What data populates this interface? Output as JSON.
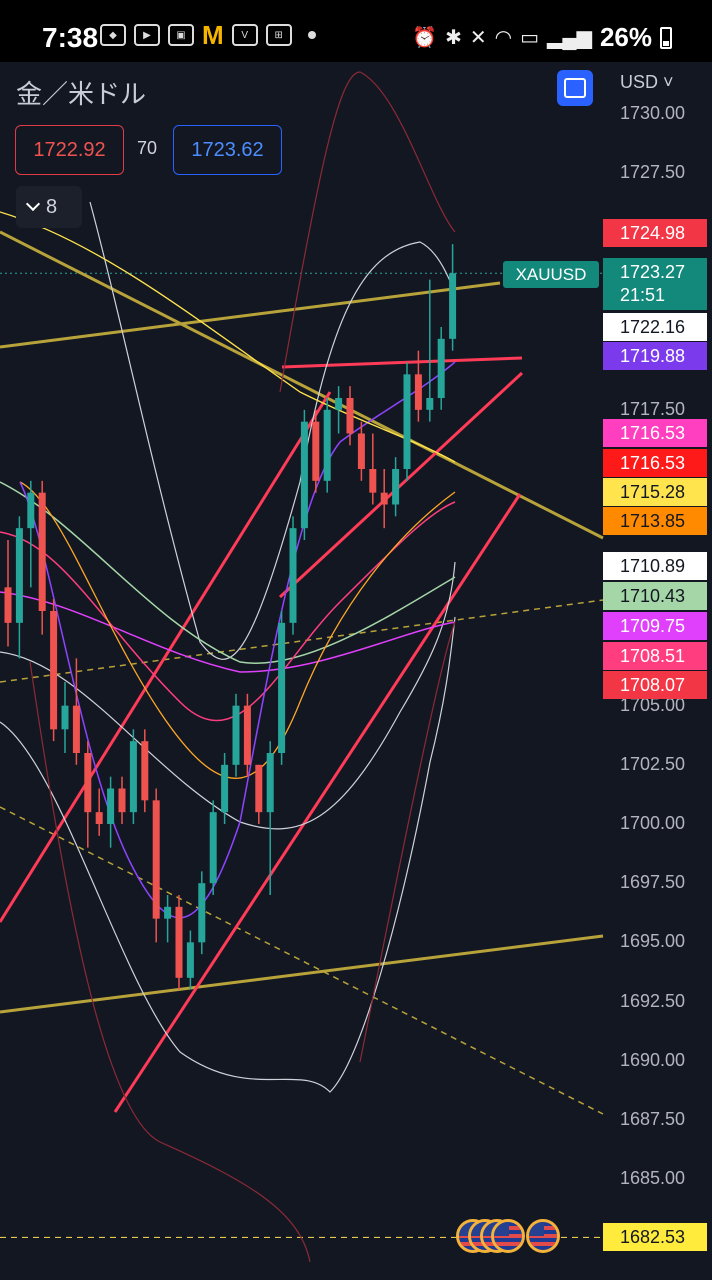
{
  "status_bar": {
    "time": "7:38",
    "left_icons": [
      "news-icon",
      "youtube-icon",
      "photo-icon",
      "mcdonalds-icon",
      "vpass-icon",
      "app-grid-icon",
      "dot-icon"
    ],
    "right_icons": [
      "alarm-icon",
      "bluetooth-icon",
      "mute-icon",
      "wifi-icon",
      "volte-icon",
      "signal-icon"
    ],
    "battery": "26%"
  },
  "header": {
    "symbol_title": "金／米ドル",
    "currency": "USD",
    "bid": "1722.92",
    "spread": "70",
    "ask": "1723.62",
    "indicators_count": "8"
  },
  "price_axis": {
    "labels": [
      "1730.00",
      "1727.50",
      "1717.50",
      "1705.00",
      "1702.50",
      "1700.00",
      "1697.50",
      "1695.00",
      "1692.50",
      "1690.00",
      "1687.50",
      "1685.00"
    ]
  },
  "current_price": {
    "symbol": "XAUUSD",
    "price": "1723.27",
    "countdown": "21:51"
  },
  "price_tags": [
    {
      "value": "1724.98",
      "bg": "#f23645",
      "fg": "#ffffff"
    },
    {
      "value": "1722.16",
      "bg": "#ffffff",
      "fg": "#131722"
    },
    {
      "value": "1719.88",
      "bg": "#7c3aed",
      "fg": "#ffffff"
    },
    {
      "value": "1716.53",
      "bg": "#ff3fbf",
      "fg": "#ffffff"
    },
    {
      "value": "1716.53",
      "bg": "#ff1a1a",
      "fg": "#ffffff"
    },
    {
      "value": "1715.28",
      "bg": "#ffe44d",
      "fg": "#131722"
    },
    {
      "value": "1713.85",
      "bg": "#ff8a00",
      "fg": "#131722"
    },
    {
      "value": "1710.89",
      "bg": "#ffffff",
      "fg": "#131722"
    },
    {
      "value": "1710.43",
      "bg": "#a5d6a7",
      "fg": "#131722"
    },
    {
      "value": "1709.75",
      "bg": "#e040fb",
      "fg": "#ffffff"
    },
    {
      "value": "1708.51",
      "bg": "#ff3d7f",
      "fg": "#ffffff"
    },
    {
      "value": "1708.07",
      "bg": "#f23645",
      "fg": "#ffffff"
    },
    {
      "value": "1682.53",
      "bg": "#ffeb3b",
      "fg": "#131722"
    }
  ],
  "colors": {
    "background": "#131722",
    "bull": "#26a69a",
    "bear": "#ef5350",
    "accent": "#2962ff"
  },
  "chart_data": {
    "type": "candlestick",
    "symbol": "XAUUSD",
    "currency": "USD",
    "ylim": [
      1680,
      1732
    ],
    "candles": [
      {
        "o": 1710.0,
        "h": 1712.0,
        "l": 1707.5,
        "c": 1708.5
      },
      {
        "o": 1708.5,
        "h": 1713.0,
        "l": 1707.0,
        "c": 1712.5
      },
      {
        "o": 1712.5,
        "h": 1714.5,
        "l": 1710.0,
        "c": 1714.0
      },
      {
        "o": 1714.0,
        "h": 1714.5,
        "l": 1708.0,
        "c": 1709.0
      },
      {
        "o": 1709.0,
        "h": 1709.5,
        "l": 1703.5,
        "c": 1704.0
      },
      {
        "o": 1704.0,
        "h": 1706.0,
        "l": 1703.0,
        "c": 1705.0
      },
      {
        "o": 1705.0,
        "h": 1707.0,
        "l": 1702.5,
        "c": 1703.0
      },
      {
        "o": 1703.0,
        "h": 1703.5,
        "l": 1699.0,
        "c": 1700.5
      },
      {
        "o": 1700.5,
        "h": 1701.5,
        "l": 1699.5,
        "c": 1700.0
      },
      {
        "o": 1700.0,
        "h": 1702.0,
        "l": 1699.0,
        "c": 1701.5
      },
      {
        "o": 1701.5,
        "h": 1702.0,
        "l": 1700.0,
        "c": 1700.5
      },
      {
        "o": 1700.5,
        "h": 1704.0,
        "l": 1700.0,
        "c": 1703.5
      },
      {
        "o": 1703.5,
        "h": 1704.0,
        "l": 1700.5,
        "c": 1701.0
      },
      {
        "o": 1701.0,
        "h": 1701.5,
        "l": 1695.0,
        "c": 1696.0
      },
      {
        "o": 1696.0,
        "h": 1697.0,
        "l": 1695.0,
        "c": 1696.5
      },
      {
        "o": 1696.5,
        "h": 1697.0,
        "l": 1693.0,
        "c": 1693.5
      },
      {
        "o": 1693.5,
        "h": 1695.5,
        "l": 1693.0,
        "c": 1695.0
      },
      {
        "o": 1695.0,
        "h": 1698.0,
        "l": 1694.5,
        "c": 1697.5
      },
      {
        "o": 1697.5,
        "h": 1701.0,
        "l": 1697.0,
        "c": 1700.5
      },
      {
        "o": 1700.5,
        "h": 1703.0,
        "l": 1700.0,
        "c": 1702.5
      },
      {
        "o": 1702.5,
        "h": 1705.5,
        "l": 1702.0,
        "c": 1705.0
      },
      {
        "o": 1705.0,
        "h": 1705.5,
        "l": 1702.0,
        "c": 1702.5
      },
      {
        "o": 1702.5,
        "h": 1702.5,
        "l": 1700.0,
        "c": 1700.5
      },
      {
        "o": 1700.5,
        "h": 1703.5,
        "l": 1697.0,
        "c": 1703.0
      },
      {
        "o": 1703.0,
        "h": 1709.0,
        "l": 1702.5,
        "c": 1708.5
      },
      {
        "o": 1708.5,
        "h": 1713.0,
        "l": 1708.0,
        "c": 1712.5
      },
      {
        "o": 1712.5,
        "h": 1717.5,
        "l": 1712.0,
        "c": 1717.0
      },
      {
        "o": 1717.0,
        "h": 1717.5,
        "l": 1714.0,
        "c": 1714.5
      },
      {
        "o": 1714.5,
        "h": 1718.0,
        "l": 1714.0,
        "c": 1717.5
      },
      {
        "o": 1717.5,
        "h": 1718.5,
        "l": 1716.5,
        "c": 1718.0
      },
      {
        "o": 1718.0,
        "h": 1718.5,
        "l": 1716.0,
        "c": 1716.5
      },
      {
        "o": 1716.5,
        "h": 1717.0,
        "l": 1714.5,
        "c": 1715.0
      },
      {
        "o": 1715.0,
        "h": 1716.5,
        "l": 1713.5,
        "c": 1714.0
      },
      {
        "o": 1714.0,
        "h": 1715.0,
        "l": 1712.5,
        "c": 1713.5
      },
      {
        "o": 1713.5,
        "h": 1715.5,
        "l": 1713.0,
        "c": 1715.0
      },
      {
        "o": 1715.0,
        "h": 1719.5,
        "l": 1714.5,
        "c": 1719.0
      },
      {
        "o": 1719.0,
        "h": 1720.0,
        "l": 1717.0,
        "c": 1717.5
      },
      {
        "o": 1717.5,
        "h": 1723.0,
        "l": 1717.0,
        "c": 1718.0
      },
      {
        "o": 1718.0,
        "h": 1721.0,
        "l": 1717.5,
        "c": 1720.5
      },
      {
        "o": 1720.5,
        "h": 1724.5,
        "l": 1720.0,
        "c": 1723.27
      }
    ]
  }
}
